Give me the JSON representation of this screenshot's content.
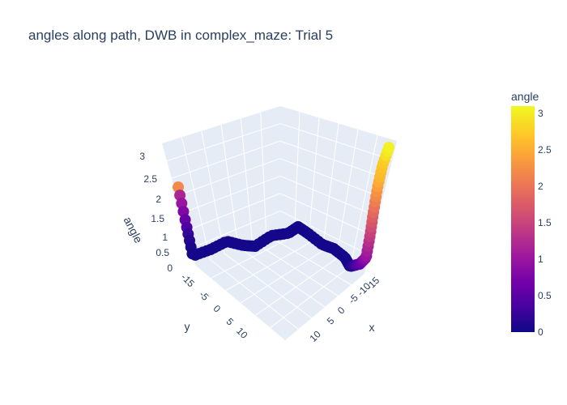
{
  "title": "angles along path, DWB in complex_maze: Trial 5",
  "colorbar": {
    "title": "angle",
    "ticks": [
      "3",
      "2.5",
      "2",
      "1.5",
      "1",
      "0.5",
      "0"
    ],
    "colorscale": [
      "#0d0887",
      "#46039f",
      "#7201a8",
      "#9c179e",
      "#bd3786",
      "#d8576b",
      "#ed7953",
      "#fb9f3a",
      "#fdca26",
      "#f0f921"
    ]
  },
  "chart_data": {
    "type": "scatter",
    "title": "angles along path, DWB in complex_maze: Trial 5",
    "xlabel": "x",
    "ylabel": "y",
    "zlabel": "angle",
    "x_ticks": [
      "-15",
      "-10",
      "-5",
      "0",
      "5",
      "10"
    ],
    "y_ticks": [
      "-15",
      "-5",
      "0",
      "5",
      "10"
    ],
    "z_ticks": [
      "0",
      "0.5",
      "1",
      "1.5",
      "2",
      "2.5",
      "3"
    ],
    "zlim": [
      0,
      3.1
    ],
    "marker_color_by": "angle",
    "series": [
      {
        "x": [
          -19,
          -18.5,
          -18.3,
          -17.6,
          -17,
          -16.6,
          -16.3,
          -15.8,
          -15.2,
          -14.6,
          -14.1,
          -13.5,
          -12.9,
          -12.3,
          -11.8,
          -11.2,
          -10.5,
          -9.8,
          -9.2,
          -8.5,
          -7.8,
          -7.1,
          -6.6,
          -6,
          -5.6,
          -5.2,
          -5,
          -4.7,
          -4.2,
          -3.5,
          -2.8,
          -2.3,
          -1.8,
          -1.6,
          -1.7,
          -1.3,
          -0.6,
          0.2,
          1,
          1.8,
          2.6,
          3.2,
          3.5,
          3.9,
          4.6,
          5.5,
          6.3,
          7,
          7.6,
          8,
          8.3,
          8.7,
          9.4,
          10.1,
          10.8,
          11.4,
          12,
          12.5,
          12.8,
          13,
          13.3,
          13.8,
          14.3,
          14.8,
          15.2,
          15.6,
          15.9,
          16.2,
          16.5,
          16.8,
          17,
          17,
          17,
          17,
          17,
          17,
          17,
          17,
          17,
          17,
          17,
          17,
          17,
          17,
          17,
          17,
          17,
          17,
          17,
          17,
          17,
          17,
          17,
          17,
          17,
          17,
          17,
          17,
          17
        ],
        "y": [
          -19,
          -18.8,
          -18.2,
          -17.6,
          -17,
          -16.4,
          -15.6,
          -14.8,
          -14.2,
          -13.8,
          -13.6,
          -13.2,
          -12.5,
          -11.6,
          -10.9,
          -10.4,
          -10.2,
          -10,
          -9.8,
          -9.6,
          -9.4,
          -9.3,
          -9.1,
          -8.8,
          -8.4,
          -7.9,
          -7.4,
          -6.8,
          -6.2,
          -5.6,
          -5.2,
          -4.7,
          -4.2,
          -3.7,
          -3.2,
          -2.7,
          -2.3,
          -1.8,
          -1.3,
          -0.8,
          -0.3,
          0.1,
          0.6,
          1.2,
          1.7,
          2.1,
          2.5,
          2.9,
          3.2,
          3.5,
          3.8,
          4.2,
          4.7,
          5.2,
          5.6,
          6.1,
          6.5,
          7,
          7.4,
          7.8,
          8.2,
          8.6,
          9,
          9.4,
          9.8,
          10.2,
          10.6,
          11,
          11.4,
          11.8,
          12.1,
          12.4,
          12.6,
          12.8,
          13,
          13.1,
          13.2,
          13.3,
          13.4,
          13.5,
          13.6,
          13.7,
          13.8,
          13.9,
          14,
          14.1,
          14.2,
          14.3,
          14.4,
          14.5,
          14.6,
          14.7,
          14.8,
          14.9,
          15,
          15.1,
          15.2,
          15.3,
          15.4
        ],
        "z": [
          2.2,
          1.2,
          1.0,
          0.8,
          0.6,
          0.4,
          0.25,
          0.15,
          0.08,
          0.05,
          0.05,
          0.05,
          0.05,
          0.05,
          0.05,
          0.05,
          0.05,
          0.05,
          0.05,
          0.05,
          0.05,
          0.05,
          0.05,
          0.05,
          0.05,
          0.05,
          0.05,
          0.05,
          0.05,
          0.05,
          0.05,
          0.05,
          0.05,
          0.05,
          0.05,
          0.05,
          0.05,
          0.05,
          0.05,
          0.05,
          0.05,
          0.05,
          0.05,
          0.05,
          0.05,
          0.05,
          0.05,
          0.05,
          0.05,
          0.05,
          0.05,
          0.05,
          0.05,
          0.05,
          0.05,
          0.05,
          0.05,
          0.05,
          0.05,
          0.05,
          0.05,
          0.05,
          0.05,
          0.05,
          0.05,
          0.05,
          0.1,
          0.2,
          0.3,
          0.4,
          0.5,
          0.6,
          0.7,
          0.8,
          0.9,
          1.0,
          1.1,
          1.2,
          1.3,
          1.4,
          1.5,
          1.6,
          1.7,
          1.8,
          1.9,
          2.0,
          2.1,
          2.2,
          2.3,
          2.4,
          2.5,
          2.6,
          2.65,
          2.7,
          2.75,
          2.8,
          2.9,
          3.0,
          3.05
        ]
      }
    ]
  }
}
